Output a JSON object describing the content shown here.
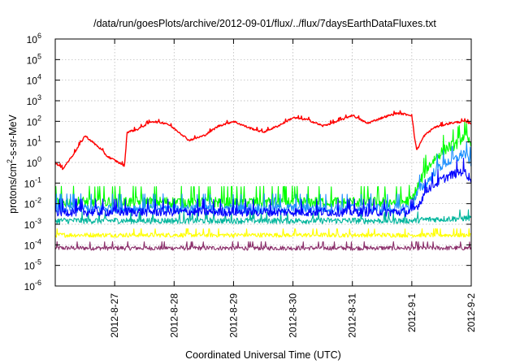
{
  "chart_data": {
    "type": "line",
    "title": "/data/run/goesPlots/archive/2012-09-01/flux/../flux/7daysEarthDataFluxes.txt",
    "xlabel": "Coordinated Universal Time (UTC)",
    "ylabel_parts": [
      "protons/cm",
      "2",
      "-s-sr-MeV"
    ],
    "x_axis_type": "date",
    "xlim": [
      "2012-08-26",
      "2012-09-02"
    ],
    "x_ticks": [
      {
        "date": "2012-08-27",
        "label": "2012-8-27"
      },
      {
        "date": "2012-08-28",
        "label": "2012-8-28"
      },
      {
        "date": "2012-08-29",
        "label": "2012-8-29"
      },
      {
        "date": "2012-08-30",
        "label": "2012-8-30"
      },
      {
        "date": "2012-08-31",
        "label": "2012-8-31"
      },
      {
        "date": "2012-09-01",
        "label": "2012-9-1"
      },
      {
        "date": "2012-09-02",
        "label": "2012-9-2"
      }
    ],
    "y_scale": "log",
    "ylim": [
      1e-06,
      1000000.0
    ],
    "y_ticks": [
      {
        "value": 1e-06,
        "base": "10",
        "exp": "-6"
      },
      {
        "value": 1e-05,
        "base": "10",
        "exp": "-5"
      },
      {
        "value": 0.0001,
        "base": "10",
        "exp": "-4"
      },
      {
        "value": 0.001,
        "base": "10",
        "exp": "-3"
      },
      {
        "value": 0.01,
        "base": "10",
        "exp": "-2"
      },
      {
        "value": 0.1,
        "base": "10",
        "exp": "-1"
      },
      {
        "value": 1,
        "base": "10",
        "exp": "0"
      },
      {
        "value": 10,
        "base": "10",
        "exp": "1"
      },
      {
        "value": 100,
        "base": "10",
        "exp": "2"
      },
      {
        "value": 1000,
        "base": "10",
        "exp": "3"
      },
      {
        "value": 10000,
        "base": "10",
        "exp": "4"
      },
      {
        "value": 100000,
        "base": "10",
        "exp": "5"
      },
      {
        "value": 1000000,
        "base": "10",
        "exp": "6"
      }
    ],
    "grid": true,
    "legend": "none",
    "series": [
      {
        "color": "#8b2f6b",
        "jitter_decades": 0.22,
        "points": [
          [
            "2012-08-26T00:00",
            7e-05
          ],
          [
            "2012-08-27T00:00",
            7e-05
          ],
          [
            "2012-08-28T00:00",
            7e-05
          ],
          [
            "2012-08-29T00:00",
            7e-05
          ],
          [
            "2012-08-30T00:00",
            7e-05
          ],
          [
            "2012-08-31T00:00",
            7e-05
          ],
          [
            "2012-09-01T00:00",
            7e-05
          ],
          [
            "2012-09-02T00:00",
            7e-05
          ]
        ]
      },
      {
        "color": "#ffff00",
        "jitter_decades": 0.22,
        "points": [
          [
            "2012-08-26T00:00",
            0.0003
          ],
          [
            "2012-08-28T00:00",
            0.0003
          ],
          [
            "2012-08-30T00:00",
            0.0003
          ],
          [
            "2012-08-31T12:00",
            0.0003
          ],
          [
            "2012-09-01T06:00",
            0.0003
          ],
          [
            "2012-09-02T00:00",
            0.0003
          ]
        ]
      },
      {
        "color": "#00b59c",
        "jitter_decades": 0.3,
        "points": [
          [
            "2012-08-26T00:00",
            0.0015
          ],
          [
            "2012-08-28T00:00",
            0.0015
          ],
          [
            "2012-08-30T00:00",
            0.0015
          ],
          [
            "2012-09-01T00:00",
            0.0015
          ],
          [
            "2012-09-01T06:00",
            0.0017
          ],
          [
            "2012-09-02T00:00",
            0.002
          ]
        ]
      },
      {
        "color": "#00ff00",
        "jitter_decades": 0.55,
        "points": [
          [
            "2012-08-26T00:00",
            0.012
          ],
          [
            "2012-08-28T00:00",
            0.012
          ],
          [
            "2012-08-30T00:00",
            0.012
          ],
          [
            "2012-08-31T20:00",
            0.012
          ],
          [
            "2012-09-01T00:00",
            0.015
          ],
          [
            "2012-09-01T03:00",
            0.1
          ],
          [
            "2012-09-01T06:00",
            0.5
          ],
          [
            "2012-09-01T10:00",
            2
          ],
          [
            "2012-09-01T14:00",
            5
          ],
          [
            "2012-09-01T18:00",
            8
          ],
          [
            "2012-09-01T21:00",
            20
          ],
          [
            "2012-09-02T00:00",
            8
          ]
        ]
      },
      {
        "color": "#1e90ff",
        "jitter_decades": 0.5,
        "points": [
          [
            "2012-08-26T00:00",
            0.006
          ],
          [
            "2012-08-28T00:00",
            0.006
          ],
          [
            "2012-08-30T00:00",
            0.006
          ],
          [
            "2012-08-31T20:00",
            0.006
          ],
          [
            "2012-09-01T00:00",
            0.008
          ],
          [
            "2012-09-01T03:00",
            0.05
          ],
          [
            "2012-09-01T06:00",
            0.1
          ],
          [
            "2012-09-01T10:00",
            0.5
          ],
          [
            "2012-09-01T14:00",
            1
          ],
          [
            "2012-09-01T18:00",
            1.5
          ],
          [
            "2012-09-01T21:00",
            3
          ],
          [
            "2012-09-02T00:00",
            1
          ]
        ]
      },
      {
        "color": "#0000ff",
        "jitter_decades": 0.45,
        "points": [
          [
            "2012-08-26T00:00",
            0.004
          ],
          [
            "2012-08-28T00:00",
            0.004
          ],
          [
            "2012-08-30T00:00",
            0.004
          ],
          [
            "2012-08-31T20:00",
            0.004
          ],
          [
            "2012-09-01T00:00",
            0.004
          ],
          [
            "2012-09-01T03:00",
            0.01
          ],
          [
            "2012-09-01T06:00",
            0.05
          ],
          [
            "2012-09-01T10:00",
            0.1
          ],
          [
            "2012-09-01T14:00",
            0.2
          ],
          [
            "2012-09-01T18:00",
            0.3
          ],
          [
            "2012-09-01T21:00",
            0.4
          ],
          [
            "2012-09-02T00:00",
            0.15
          ]
        ]
      },
      {
        "color": "#ff0000",
        "jitter_decades": 0.1,
        "points": [
          [
            "2012-08-26T00:00",
            1.0
          ],
          [
            "2012-08-26T03:00",
            0.5
          ],
          [
            "2012-08-26T06:00",
            1.5
          ],
          [
            "2012-08-26T09:00",
            5
          ],
          [
            "2012-08-26T12:00",
            20
          ],
          [
            "2012-08-26T15:00",
            10
          ],
          [
            "2012-08-26T18:00",
            5
          ],
          [
            "2012-08-26T21:00",
            2
          ],
          [
            "2012-08-27T04:00",
            0.7
          ],
          [
            "2012-08-27T05:00",
            30
          ],
          [
            "2012-08-27T09:00",
            40
          ],
          [
            "2012-08-27T15:00",
            100
          ],
          [
            "2012-08-27T21:00",
            80
          ],
          [
            "2012-08-28T02:00",
            30
          ],
          [
            "2012-08-28T06:00",
            12
          ],
          [
            "2012-08-28T12:00",
            20
          ],
          [
            "2012-08-28T18:00",
            60
          ],
          [
            "2012-08-29T00:00",
            100
          ],
          [
            "2012-08-29T06:00",
            50
          ],
          [
            "2012-08-29T12:00",
            30
          ],
          [
            "2012-08-29T18:00",
            60
          ],
          [
            "2012-08-30T00:00",
            150
          ],
          [
            "2012-08-30T06:00",
            120
          ],
          [
            "2012-08-30T12:00",
            60
          ],
          [
            "2012-08-30T18:00",
            100
          ],
          [
            "2012-08-31T00:00",
            200
          ],
          [
            "2012-08-31T06:00",
            80
          ],
          [
            "2012-08-31T12:00",
            150
          ],
          [
            "2012-08-31T18:00",
            250
          ],
          [
            "2012-09-01T00:00",
            200
          ],
          [
            "2012-09-01T01:00",
            20
          ],
          [
            "2012-09-01T02:00",
            4
          ],
          [
            "2012-09-01T05:00",
            20
          ],
          [
            "2012-09-01T09:00",
            50
          ],
          [
            "2012-09-01T15:00",
            80
          ],
          [
            "2012-09-01T21:00",
            100
          ],
          [
            "2012-09-02T00:00",
            80
          ]
        ]
      }
    ]
  }
}
